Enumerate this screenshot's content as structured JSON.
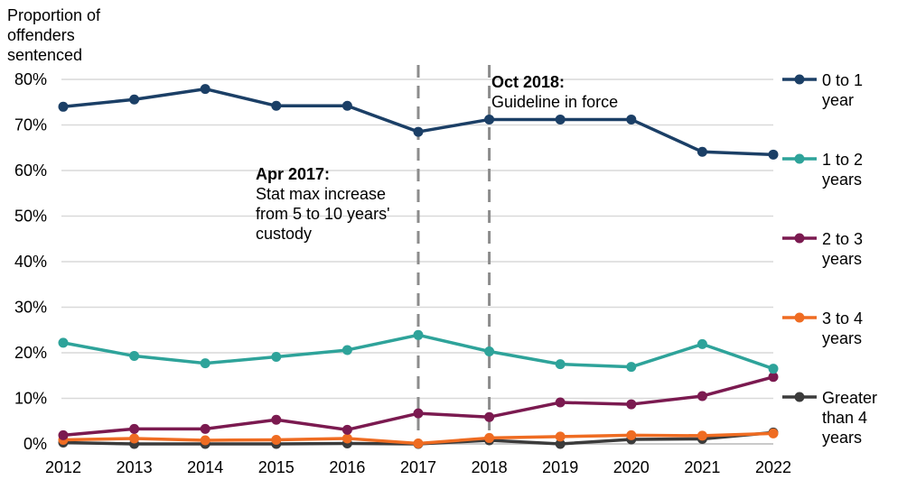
{
  "chart_data": {
    "type": "line",
    "ylabel": "Proportion of offenders sentenced",
    "ylabel_lines": [
      "Proportion of",
      "offenders",
      "sentenced"
    ],
    "x": [
      "2012",
      "2013",
      "2014",
      "2015",
      "2016",
      "2017",
      "2018",
      "2019",
      "2020",
      "2021",
      "2022"
    ],
    "ylim": [
      0,
      80
    ],
    "yticks": [
      0,
      10,
      20,
      30,
      40,
      50,
      60,
      70,
      80
    ],
    "ytick_labels": [
      "0%",
      "10%",
      "20%",
      "30%",
      "40%",
      "50%",
      "60%",
      "70%",
      "80%"
    ],
    "grid": true,
    "series": [
      {
        "name": "0 to 1 year",
        "label_lines": [
          "0 to 1",
          "year"
        ],
        "color": "#1b3f66",
        "values": [
          74.0,
          75.6,
          77.9,
          74.2,
          74.2,
          68.5,
          71.2,
          71.2,
          71.2,
          64.1,
          63.5
        ]
      },
      {
        "name": "1 to 2 years",
        "label_lines": [
          "1 to 2",
          "years"
        ],
        "color": "#2ea39a",
        "values": [
          22.2,
          19.3,
          17.7,
          19.1,
          20.6,
          23.9,
          20.3,
          17.5,
          16.9,
          21.9,
          16.5
        ]
      },
      {
        "name": "2 to 3 years",
        "label_lines": [
          "2 to 3",
          "years"
        ],
        "color": "#7b1a50",
        "values": [
          1.9,
          3.3,
          3.3,
          5.3,
          3.1,
          6.7,
          5.9,
          9.1,
          8.7,
          10.5,
          14.7
        ]
      },
      {
        "name": "3 to 4 years",
        "label_lines": [
          "3 to 4",
          "years"
        ],
        "color": "#ef6c22",
        "values": [
          0.9,
          1.2,
          0.8,
          0.9,
          1.2,
          0.1,
          1.3,
          1.6,
          1.9,
          1.8,
          2.3
        ]
      },
      {
        "name": "Greater than 4 years",
        "label_lines": [
          "Greater",
          "than 4",
          "years"
        ],
        "color": "#3b3b3b",
        "values": [
          0.3,
          0.0,
          0.0,
          0.0,
          0.1,
          0.0,
          0.8,
          0.0,
          1.0,
          1.1,
          2.5
        ]
      }
    ],
    "annotations": [
      {
        "x": "2017",
        "title": "Apr 2017:",
        "text": "Stat max increase\nfrom 5 to 10 years'\ncustody"
      },
      {
        "x": "2018",
        "title": "Oct 2018:",
        "text": "Guideline in force"
      }
    ]
  }
}
